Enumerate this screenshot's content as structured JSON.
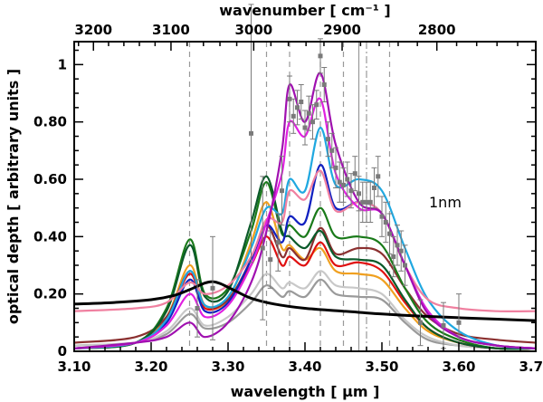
{
  "chart_data": {
    "type": "line",
    "title": "",
    "xlabel": "wavelength [ µm ]",
    "ylabel": "optical depth [ arbitrary units ]",
    "x2label": "wavenumber [ cm⁻¹ ]",
    "annotation": "1nm",
    "xlim": [
      3.1,
      3.7
    ],
    "ylim": [
      0,
      1.08
    ],
    "x_ticks": [
      3.1,
      3.2,
      3.3,
      3.4,
      3.5,
      3.6,
      3.7
    ],
    "x_tick_labels": [
      "3.10",
      "3.20",
      "3.30",
      "3.40",
      "3.50",
      "3.60",
      "3.70"
    ],
    "y_ticks": [
      0,
      0.2,
      0.4,
      0.6,
      0.8,
      1.0
    ],
    "y_tick_labels": [
      "0",
      "0.20",
      "0.40",
      "0.60",
      "0.80",
      "1"
    ],
    "x2_ticks": [
      3200,
      3100,
      3000,
      2900,
      2800
    ],
    "x2_tick_labels": [
      "3200",
      "3100",
      "3000",
      "2900",
      "2800"
    ],
    "vlines_dashed": [
      3.25,
      3.35,
      3.38,
      3.42,
      3.45,
      3.51
    ],
    "vlines_solid": [
      3.47
    ],
    "vlines_dashdot": [
      3.48
    ],
    "series": [
      {
        "name": "gray",
        "color": "#9a9a9a",
        "x": [
          3.1,
          3.18,
          3.22,
          3.25,
          3.27,
          3.3,
          3.33,
          3.35,
          3.37,
          3.38,
          3.4,
          3.42,
          3.44,
          3.47,
          3.5,
          3.53,
          3.56,
          3.6,
          3.65,
          3.7
        ],
        "y": [
          0.02,
          0.03,
          0.06,
          0.13,
          0.08,
          0.1,
          0.17,
          0.23,
          0.19,
          0.21,
          0.19,
          0.25,
          0.2,
          0.19,
          0.18,
          0.1,
          0.04,
          0.02,
          0.01,
          0.01
        ]
      },
      {
        "name": "light-gray",
        "color": "#c8c8c8",
        "x": [
          3.1,
          3.18,
          3.22,
          3.25,
          3.27,
          3.3,
          3.33,
          3.35,
          3.37,
          3.38,
          3.4,
          3.42,
          3.44,
          3.47,
          3.5,
          3.53,
          3.56,
          3.6,
          3.65,
          3.7
        ],
        "y": [
          0.02,
          0.03,
          0.07,
          0.15,
          0.09,
          0.12,
          0.2,
          0.27,
          0.22,
          0.24,
          0.22,
          0.28,
          0.23,
          0.22,
          0.2,
          0.11,
          0.05,
          0.02,
          0.01,
          0.01
        ]
      },
      {
        "name": "orange",
        "color": "#f0a020",
        "x": [
          3.1,
          3.18,
          3.22,
          3.25,
          3.27,
          3.3,
          3.33,
          3.35,
          3.37,
          3.38,
          3.4,
          3.42,
          3.44,
          3.47,
          3.5,
          3.53,
          3.56,
          3.6,
          3.65,
          3.7
        ],
        "y": [
          0.01,
          0.03,
          0.12,
          0.3,
          0.16,
          0.18,
          0.38,
          0.52,
          0.36,
          0.37,
          0.32,
          0.36,
          0.28,
          0.27,
          0.25,
          0.15,
          0.07,
          0.03,
          0.01,
          0.01
        ]
      },
      {
        "name": "red",
        "color": "#e01010",
        "x": [
          3.1,
          3.18,
          3.22,
          3.25,
          3.27,
          3.3,
          3.33,
          3.35,
          3.37,
          3.38,
          3.4,
          3.42,
          3.44,
          3.47,
          3.5,
          3.53,
          3.56,
          3.6,
          3.65,
          3.7
        ],
        "y": [
          0.01,
          0.03,
          0.11,
          0.27,
          0.15,
          0.18,
          0.3,
          0.4,
          0.3,
          0.33,
          0.3,
          0.38,
          0.3,
          0.31,
          0.28,
          0.17,
          0.08,
          0.03,
          0.01,
          0.01
        ]
      },
      {
        "name": "brown",
        "color": "#8b3030",
        "x": [
          3.1,
          3.18,
          3.22,
          3.25,
          3.27,
          3.3,
          3.33,
          3.35,
          3.37,
          3.38,
          3.4,
          3.42,
          3.44,
          3.47,
          3.5,
          3.53,
          3.56,
          3.6,
          3.65,
          3.7
        ],
        "y": [
          0.03,
          0.05,
          0.12,
          0.28,
          0.16,
          0.18,
          0.32,
          0.44,
          0.33,
          0.36,
          0.32,
          0.43,
          0.34,
          0.36,
          0.34,
          0.22,
          0.12,
          0.06,
          0.04,
          0.03
        ]
      },
      {
        "name": "green",
        "color": "#1a7a1a",
        "x": [
          3.1,
          3.18,
          3.22,
          3.25,
          3.27,
          3.3,
          3.33,
          3.35,
          3.37,
          3.38,
          3.4,
          3.42,
          3.44,
          3.47,
          3.5,
          3.53,
          3.56,
          3.6,
          3.65,
          3.7
        ],
        "y": [
          0.01,
          0.03,
          0.15,
          0.39,
          0.2,
          0.22,
          0.42,
          0.59,
          0.41,
          0.44,
          0.4,
          0.5,
          0.4,
          0.4,
          0.37,
          0.22,
          0.1,
          0.04,
          0.01,
          0.01
        ]
      },
      {
        "name": "dark-green",
        "color": "#0b5a2a",
        "x": [
          3.1,
          3.18,
          3.22,
          3.25,
          3.27,
          3.3,
          3.33,
          3.35,
          3.37,
          3.38,
          3.4,
          3.42,
          3.44,
          3.47,
          3.5,
          3.53,
          3.56,
          3.6,
          3.65,
          3.7
        ],
        "y": [
          0.01,
          0.03,
          0.14,
          0.37,
          0.19,
          0.21,
          0.45,
          0.61,
          0.42,
          0.4,
          0.36,
          0.42,
          0.33,
          0.32,
          0.3,
          0.18,
          0.08,
          0.03,
          0.01,
          0.01
        ]
      },
      {
        "name": "blue",
        "color": "#1020c0",
        "x": [
          3.1,
          3.18,
          3.22,
          3.25,
          3.27,
          3.3,
          3.33,
          3.35,
          3.37,
          3.38,
          3.4,
          3.42,
          3.44,
          3.47,
          3.5,
          3.53,
          3.56,
          3.6,
          3.65,
          3.7
        ],
        "y": [
          0.01,
          0.03,
          0.1,
          0.25,
          0.14,
          0.17,
          0.32,
          0.44,
          0.38,
          0.47,
          0.45,
          0.65,
          0.5,
          0.52,
          0.48,
          0.3,
          0.14,
          0.05,
          0.02,
          0.01
        ]
      },
      {
        "name": "sky-blue",
        "color": "#20a8e0",
        "x": [
          3.1,
          3.18,
          3.22,
          3.25,
          3.27,
          3.3,
          3.33,
          3.35,
          3.37,
          3.38,
          3.4,
          3.42,
          3.44,
          3.47,
          3.5,
          3.53,
          3.56,
          3.6,
          3.65,
          3.7
        ],
        "y": [
          0.01,
          0.03,
          0.11,
          0.28,
          0.16,
          0.19,
          0.36,
          0.5,
          0.48,
          0.6,
          0.56,
          0.78,
          0.58,
          0.6,
          0.56,
          0.36,
          0.18,
          0.07,
          0.02,
          0.01
        ]
      },
      {
        "name": "pink",
        "color": "#f080a0",
        "x": [
          3.1,
          3.18,
          3.22,
          3.25,
          3.27,
          3.3,
          3.33,
          3.35,
          3.37,
          3.38,
          3.4,
          3.42,
          3.44,
          3.47,
          3.5,
          3.53,
          3.56,
          3.6,
          3.65,
          3.7
        ],
        "y": [
          0.14,
          0.15,
          0.17,
          0.24,
          0.2,
          0.23,
          0.33,
          0.46,
          0.45,
          0.56,
          0.53,
          0.63,
          0.49,
          0.52,
          0.48,
          0.3,
          0.18,
          0.15,
          0.14,
          0.14
        ]
      },
      {
        "name": "magenta",
        "color": "#e020e0",
        "x": [
          3.1,
          3.18,
          3.22,
          3.25,
          3.27,
          3.3,
          3.33,
          3.35,
          3.37,
          3.38,
          3.4,
          3.42,
          3.44,
          3.47,
          3.5,
          3.53,
          3.56,
          3.6,
          3.65,
          3.7
        ],
        "y": [
          0.01,
          0.03,
          0.09,
          0.2,
          0.12,
          0.16,
          0.3,
          0.45,
          0.62,
          0.8,
          0.75,
          0.88,
          0.62,
          0.5,
          0.48,
          0.3,
          0.14,
          0.05,
          0.02,
          0.01
        ]
      },
      {
        "name": "purple",
        "color": "#a010b0",
        "x": [
          3.1,
          3.18,
          3.22,
          3.25,
          3.27,
          3.3,
          3.33,
          3.35,
          3.37,
          3.38,
          3.4,
          3.42,
          3.44,
          3.47,
          3.5,
          3.53,
          3.56,
          3.6,
          3.65,
          3.7
        ],
        "y": [
          0.01,
          0.03,
          0.05,
          0.1,
          0.05,
          0.1,
          0.24,
          0.42,
          0.7,
          0.93,
          0.8,
          0.97,
          0.72,
          0.52,
          0.48,
          0.3,
          0.13,
          0.05,
          0.02,
          0.01
        ]
      },
      {
        "name": "black",
        "color": "#000000",
        "x": [
          3.1,
          3.15,
          3.2,
          3.23,
          3.25,
          3.27,
          3.28,
          3.29,
          3.31,
          3.33,
          3.36,
          3.4,
          3.45,
          3.5,
          3.55,
          3.6,
          3.65,
          3.7
        ],
        "y": [
          0.165,
          0.17,
          0.18,
          0.195,
          0.215,
          0.238,
          0.243,
          0.236,
          0.21,
          0.185,
          0.165,
          0.15,
          0.14,
          0.13,
          0.123,
          0.117,
          0.112,
          0.107
        ]
      }
    ],
    "observed_points": {
      "color": "#7a7a7a",
      "x": [
        3.26,
        3.28,
        3.33,
        3.345,
        3.355,
        3.365,
        3.37,
        3.38,
        3.385,
        3.39,
        3.395,
        3.4,
        3.405,
        3.41,
        3.415,
        3.42,
        3.425,
        3.43,
        3.435,
        3.44,
        3.445,
        3.45,
        3.455,
        3.46,
        3.465,
        3.47,
        3.475,
        3.48,
        3.485,
        3.49,
        3.495,
        3.5,
        3.505,
        3.51,
        3.515,
        3.52,
        3.525,
        3.53,
        3.55,
        3.58,
        3.6
      ],
      "y": [
        0.15,
        0.22,
        0.76,
        0.36,
        0.32,
        0.38,
        0.56,
        0.88,
        0.82,
        0.85,
        0.87,
        0.78,
        0.83,
        0.8,
        0.86,
        1.03,
        0.93,
        0.74,
        0.7,
        0.64,
        0.59,
        0.58,
        0.6,
        0.56,
        0.62,
        0.55,
        0.52,
        0.52,
        0.52,
        0.57,
        0.61,
        0.47,
        0.45,
        0.41,
        0.33,
        0.37,
        0.35,
        0.3,
        0.1,
        0.09,
        0.1
      ],
      "err": [
        0.1,
        0.18,
        0.45,
        0.25,
        0.1,
        0.1,
        0.12,
        0.08,
        0.06,
        0.06,
        0.06,
        0.06,
        0.06,
        0.06,
        0.05,
        0.06,
        0.06,
        0.06,
        0.06,
        0.07,
        0.07,
        0.06,
        0.06,
        0.06,
        0.06,
        0.06,
        0.07,
        0.07,
        0.07,
        0.07,
        0.07,
        0.07,
        0.07,
        0.07,
        0.07,
        0.07,
        0.07,
        0.07,
        0.08,
        0.08,
        0.1
      ]
    }
  }
}
